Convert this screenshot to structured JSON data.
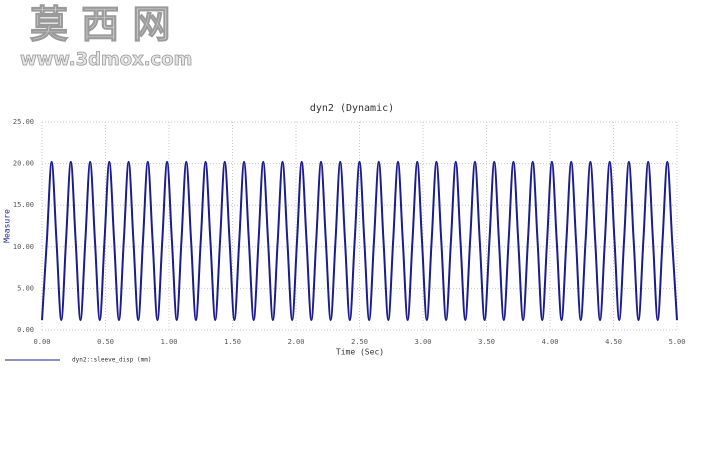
{
  "watermark": {
    "title": "莫 西 网",
    "url": "www.3dmox.com"
  },
  "chart_data": {
    "type": "line",
    "title": "dyn2 (Dynamic)",
    "x_label": "Time (Sec)",
    "y_label": "Measure",
    "xlim": [
      0,
      5
    ],
    "ylim": [
      0,
      25
    ],
    "xticks": [
      {
        "value": 0,
        "label": "0.00"
      },
      {
        "value": 0.5,
        "label": "0.50"
      },
      {
        "value": 1,
        "label": "1.00"
      },
      {
        "value": 1.5,
        "label": "1.50"
      },
      {
        "value": 2,
        "label": "2.00"
      },
      {
        "value": 2.5,
        "label": "2.50"
      },
      {
        "value": 3,
        "label": "3.00"
      },
      {
        "value": 3.5,
        "label": "3.50"
      },
      {
        "value": 4,
        "label": "4.00"
      },
      {
        "value": 4.5,
        "label": "4.50"
      },
      {
        "value": 5,
        "label": "5.00"
      }
    ],
    "yticks": [
      {
        "value": 0,
        "label": "0.00"
      },
      {
        "value": 5,
        "label": "5.00"
      },
      {
        "value": 10,
        "label": "10.00"
      },
      {
        "value": 15,
        "label": "15.00"
      },
      {
        "value": 20,
        "label": "20.00"
      },
      {
        "value": 25,
        "label": "25.00"
      }
    ],
    "grid": true,
    "x": [
      0,
      0.038,
      0.076,
      0.114,
      0.152,
      0.189,
      0.227,
      0.265,
      0.303,
      0.341,
      0.379,
      0.417,
      0.455,
      0.492,
      0.53,
      0.568,
      0.606,
      0.644,
      0.682,
      0.72,
      0.758,
      0.795,
      0.833,
      0.871,
      0.909,
      0.947,
      0.985,
      1.023,
      1.061,
      1.098,
      1.136,
      1.174,
      1.212,
      1.25,
      1.288,
      1.326,
      1.364,
      1.402,
      1.439,
      1.477,
      1.515,
      1.553,
      1.591,
      1.629,
      1.667,
      1.705,
      1.742,
      1.78,
      1.818,
      1.856,
      1.894,
      1.932,
      1.97,
      2.008,
      2.045,
      2.083,
      2.121,
      2.159,
      2.197,
      2.235,
      2.273,
      2.311,
      2.348,
      2.386,
      2.424,
      2.462,
      2.5,
      2.538,
      2.576,
      2.614,
      2.652,
      2.689,
      2.727,
      2.765,
      2.803,
      2.841,
      2.879,
      2.917,
      2.955,
      2.992,
      3.03,
      3.068,
      3.106,
      3.144,
      3.182,
      3.22,
      3.258,
      3.295,
      3.333,
      3.371,
      3.409,
      3.447,
      3.485,
      3.523,
      3.561,
      3.598,
      3.636,
      3.674,
      3.712,
      3.75,
      3.788,
      3.826,
      3.864,
      3.902,
      3.939,
      3.977,
      4.015,
      4.053,
      4.091,
      4.129,
      4.167,
      4.205,
      4.242,
      4.28,
      4.318,
      4.356,
      4.394,
      4.432,
      4.47,
      4.508,
      4.545,
      4.583,
      4.621,
      4.659,
      4.697,
      4.735,
      4.773,
      4.811,
      4.848,
      4.886,
      4.924,
      4.962,
      5
    ],
    "series": [
      {
        "name": "dyn2::sleeve_disp (mm)",
        "color": "#1c1c8f",
        "values": [
          1.2,
          10.7,
          20.2,
          10.7,
          1.2,
          10.7,
          20.2,
          10.7,
          1.2,
          10.7,
          20.2,
          10.7,
          1.2,
          10.7,
          20.2,
          10.7,
          1.2,
          10.7,
          20.2,
          10.7,
          1.2,
          10.7,
          20.2,
          10.7,
          1.2,
          10.7,
          20.2,
          10.7,
          1.2,
          10.7,
          20.2,
          10.7,
          1.2,
          10.7,
          20.2,
          10.7,
          1.2,
          10.7,
          20.2,
          10.7,
          1.2,
          10.7,
          20.2,
          10.7,
          1.2,
          10.7,
          20.2,
          10.7,
          1.2,
          10.7,
          20.2,
          10.7,
          1.2,
          10.7,
          20.2,
          10.7,
          1.2,
          10.7,
          20.2,
          10.7,
          1.2,
          10.7,
          20.2,
          10.7,
          1.2,
          10.7,
          20.2,
          10.7,
          1.2,
          10.7,
          20.2,
          10.7,
          1.2,
          10.7,
          20.2,
          10.7,
          1.2,
          10.7,
          20.2,
          10.7,
          1.2,
          10.7,
          20.2,
          10.7,
          1.2,
          10.7,
          20.2,
          10.7,
          1.2,
          10.7,
          20.2,
          10.7,
          1.2,
          10.7,
          20.2,
          10.7,
          1.2,
          10.7,
          20.2,
          10.7,
          1.2,
          10.7,
          20.2,
          10.7,
          1.2,
          10.7,
          20.2,
          10.7,
          1.2,
          10.7,
          20.2,
          10.7,
          1.2,
          10.7,
          20.2,
          10.7,
          1.2,
          10.7,
          20.2,
          10.7,
          1.2,
          10.7,
          20.2,
          10.7,
          1.2,
          10.7,
          20.2,
          10.7,
          1.2,
          10.7,
          20.2,
          10.7,
          1.2
        ]
      }
    ]
  }
}
